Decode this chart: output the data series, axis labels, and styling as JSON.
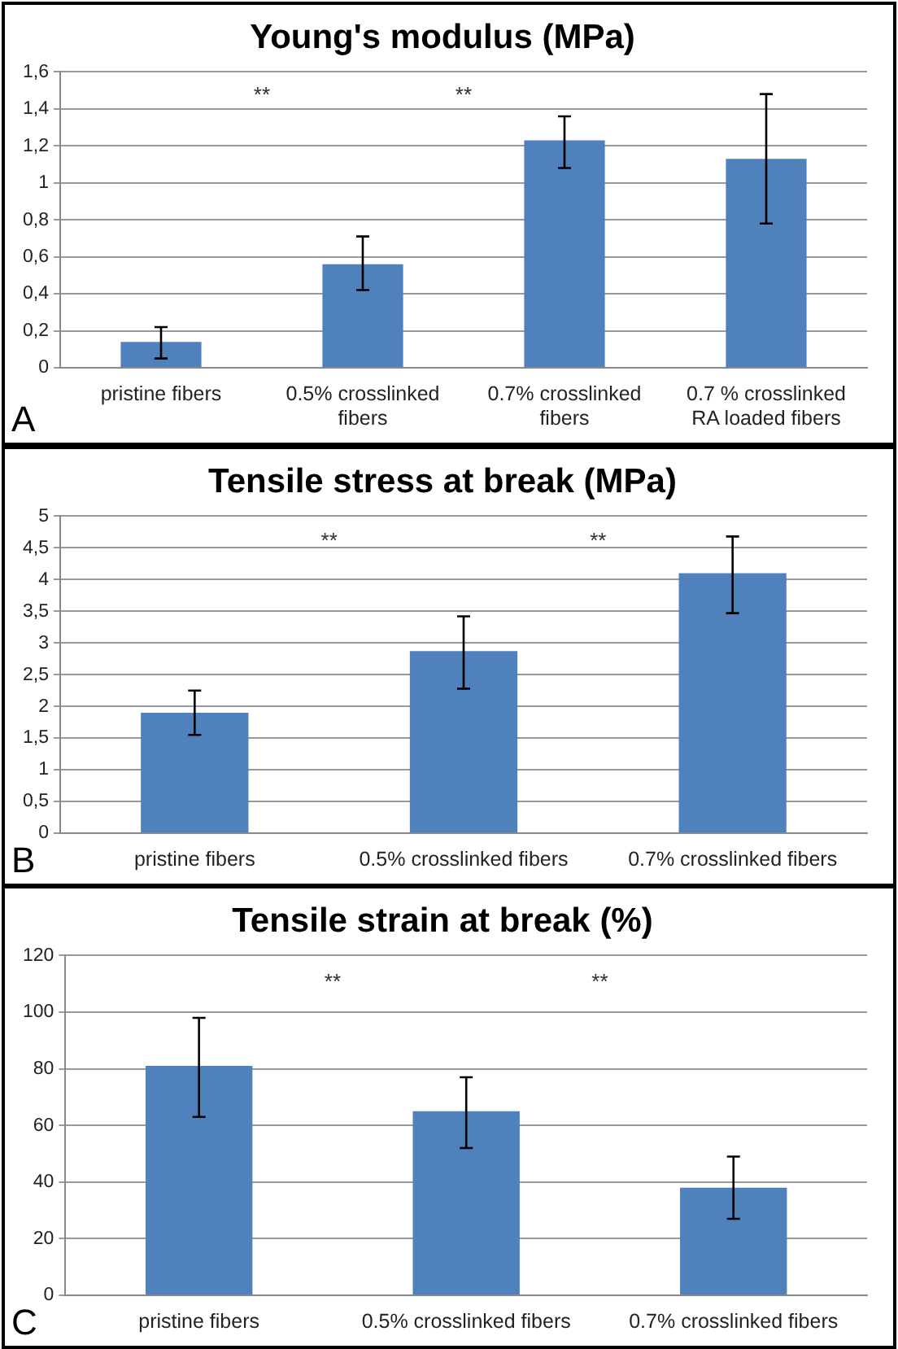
{
  "chart_data": [
    {
      "type": "bar",
      "title": "Young's modulus (MPa)",
      "categories": [
        "pristine fibers",
        "0.5% crosslinked fibers",
        "0.7% crosslinked fibers",
        "0.7 % crosslinked RA loaded fibers"
      ],
      "values": [
        0.14,
        0.56,
        1.23,
        1.13
      ],
      "color": "#4f81bd",
      "errors": [
        [
          0.05,
          0.22
        ],
        [
          0.42,
          0.71
        ],
        [
          1.08,
          1.36
        ],
        [
          0.78,
          1.48
        ]
      ],
      "ylim": [
        0,
        1.6
      ],
      "yticks": [
        0,
        {
          "value": 0.2,
          "label": "0,2"
        },
        {
          "value": 0.4,
          "label": "0,4"
        },
        {
          "value": 0.6,
          "label": "0,6"
        },
        {
          "value": 0.8,
          "label": "0,8"
        },
        1,
        {
          "value": 1.2,
          "label": "1,2"
        },
        {
          "value": 1.4,
          "label": "1,4"
        },
        {
          "value": 1.6,
          "label": "1,6"
        }
      ],
      "grid": "y",
      "legend": false,
      "annotations": [
        "**",
        "**",
        "A"
      ]
    },
    {
      "type": "bar",
      "title": "Tensile stress at break (MPa)",
      "categories": [
        "pristine fibers",
        "0.5% crosslinked fibers",
        "0.7% crosslinked fibers"
      ],
      "values": [
        1.9,
        2.87,
        4.1
      ],
      "color": "#4f81bd",
      "errors": [
        [
          1.55,
          2.25
        ],
        [
          2.28,
          3.42
        ],
        [
          3.47,
          4.68
        ]
      ],
      "ylim": [
        0,
        5
      ],
      "yticks": [
        0,
        {
          "value": 0.5,
          "label": "0,5"
        },
        1,
        {
          "value": 1.5,
          "label": "1,5"
        },
        2,
        {
          "value": 2.5,
          "label": "2,5"
        },
        3,
        {
          "value": 3.5,
          "label": "3,5"
        },
        4,
        {
          "value": 4.5,
          "label": "4,5"
        },
        5
      ],
      "grid": "y",
      "legend": false,
      "annotations": [
        "**",
        "**",
        "B"
      ]
    },
    {
      "type": "bar",
      "title": "Tensile strain at break (%)",
      "categories": [
        "pristine fibers",
        "0.5% crosslinked fibers",
        "0.7% crosslinked fibers"
      ],
      "values": [
        81,
        65,
        38
      ],
      "color": "#4f81bd",
      "errors": [
        [
          63,
          98
        ],
        [
          52,
          77
        ],
        [
          27,
          49
        ]
      ],
      "ylim": [
        0,
        120
      ],
      "yticks": [
        0,
        20,
        40,
        60,
        80,
        100,
        120
      ],
      "grid": "y",
      "legend": false,
      "annotations": [
        "**",
        "**",
        "C"
      ]
    }
  ]
}
